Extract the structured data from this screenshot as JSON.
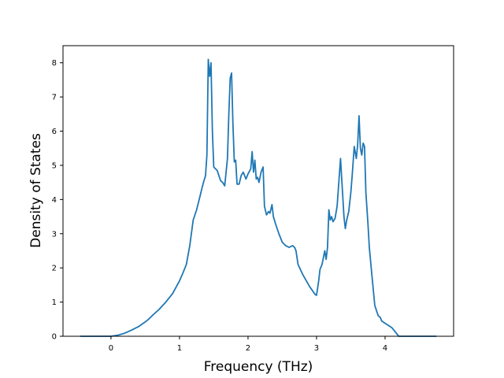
{
  "chart_data": {
    "type": "line",
    "title": "",
    "xlabel": "Frequency (THz)",
    "ylabel": "Density of States",
    "xlim": [
      -0.7,
      5.0
    ],
    "ylim": [
      0,
      8.5
    ],
    "x_ticks": [
      0,
      1,
      2,
      3,
      4
    ],
    "y_ticks": [
      0,
      1,
      2,
      3,
      4,
      5,
      6,
      7,
      8
    ],
    "grid": false,
    "legend": "none",
    "series": [
      {
        "color": "#1f77b4",
        "x": [
          -0.45,
          0.0,
          0.1,
          0.2,
          0.3,
          0.4,
          0.5,
          0.55,
          0.6,
          0.7,
          0.8,
          0.9,
          1.0,
          1.05,
          1.1,
          1.15,
          1.2,
          1.25,
          1.3,
          1.33,
          1.35,
          1.38,
          1.4,
          1.42,
          1.44,
          1.46,
          1.48,
          1.5,
          1.55,
          1.6,
          1.63,
          1.66,
          1.7,
          1.72,
          1.74,
          1.76,
          1.78,
          1.8,
          1.82,
          1.84,
          1.87,
          1.9,
          1.93,
          1.97,
          2.0,
          2.04,
          2.06,
          2.08,
          2.1,
          2.12,
          2.14,
          2.16,
          2.19,
          2.22,
          2.24,
          2.27,
          2.3,
          2.32,
          2.35,
          2.37,
          2.4,
          2.45,
          2.5,
          2.55,
          2.6,
          2.65,
          2.68,
          2.7,
          2.73,
          2.8,
          2.9,
          2.98,
          3.0,
          3.03,
          3.05,
          3.08,
          3.12,
          3.14,
          3.16,
          3.18,
          3.2,
          3.22,
          3.24,
          3.27,
          3.3,
          3.35,
          3.4,
          3.42,
          3.44,
          3.47,
          3.5,
          3.52,
          3.55,
          3.58,
          3.6,
          3.62,
          3.64,
          3.66,
          3.68,
          3.7,
          3.72,
          3.75,
          3.77,
          3.8,
          3.85,
          3.9,
          3.93,
          3.95,
          4.0,
          4.1,
          4.2,
          4.28,
          4.32,
          4.5,
          4.75
        ],
        "values": [
          0.0,
          0.0,
          0.03,
          0.09,
          0.18,
          0.28,
          0.42,
          0.5,
          0.6,
          0.78,
          1.0,
          1.25,
          1.62,
          1.85,
          2.1,
          2.65,
          3.4,
          3.7,
          4.1,
          4.35,
          4.5,
          4.7,
          5.3,
          8.1,
          7.6,
          8.0,
          6.0,
          4.95,
          4.85,
          4.55,
          4.5,
          4.4,
          5.2,
          6.5,
          7.55,
          7.7,
          6.2,
          5.1,
          5.15,
          4.45,
          4.45,
          4.7,
          4.8,
          4.6,
          4.75,
          4.9,
          5.4,
          4.8,
          5.15,
          4.6,
          4.65,
          4.5,
          4.8,
          4.95,
          3.8,
          3.55,
          3.65,
          3.6,
          3.85,
          3.5,
          3.3,
          3.0,
          2.75,
          2.65,
          2.6,
          2.65,
          2.6,
          2.5,
          2.1,
          1.8,
          1.45,
          1.22,
          1.2,
          1.6,
          1.95,
          2.1,
          2.5,
          2.25,
          2.6,
          3.7,
          3.4,
          3.5,
          3.35,
          3.45,
          3.8,
          5.2,
          3.5,
          3.15,
          3.4,
          3.65,
          4.2,
          4.7,
          5.55,
          5.2,
          5.6,
          6.45,
          5.5,
          5.3,
          5.65,
          5.55,
          4.2,
          3.3,
          2.6,
          1.95,
          0.9,
          0.6,
          0.55,
          0.45,
          0.38,
          0.25,
          0.0,
          0.0,
          0.0,
          0.0,
          0.0
        ]
      }
    ]
  }
}
